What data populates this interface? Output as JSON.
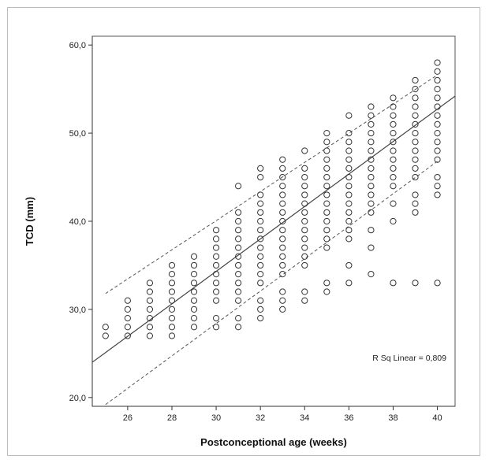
{
  "chart_data": {
    "type": "scatter",
    "xlabel": "Postconceptional age (weeks)",
    "ylabel": "TCD (mm)",
    "xlim": [
      24.4,
      40.8
    ],
    "ylim": [
      19.0,
      61.0
    ],
    "x_ticks": [
      26,
      28,
      30,
      32,
      34,
      36,
      38,
      40
    ],
    "y_ticks": [
      {
        "value": 20,
        "label": "20,0"
      },
      {
        "value": 30,
        "label": "30,0"
      },
      {
        "value": 40,
        "label": "40,0"
      },
      {
        "value": 50,
        "label": "50,0"
      },
      {
        "value": 60,
        "label": "60,0"
      }
    ],
    "annotation": "R Sq Linear = 0,809",
    "grid": false,
    "marker": "open-circle",
    "points": [
      {
        "x": 25,
        "y": [
          27,
          28
        ]
      },
      {
        "x": 26,
        "y": [
          27,
          28,
          29,
          30,
          31
        ]
      },
      {
        "x": 27,
        "y": [
          27,
          28,
          29,
          30,
          31,
          32,
          33
        ]
      },
      {
        "x": 28,
        "y": [
          27,
          28,
          29,
          30,
          31,
          32,
          33,
          34,
          35
        ]
      },
      {
        "x": 29,
        "y": [
          28,
          29,
          30,
          31,
          32,
          33,
          34,
          35,
          36
        ]
      },
      {
        "x": 30,
        "y": [
          28,
          29,
          31,
          32,
          33,
          34,
          35,
          36,
          37,
          38,
          39
        ]
      },
      {
        "x": 31,
        "y": [
          28,
          29,
          31,
          32,
          33,
          34,
          35,
          36,
          37,
          38,
          39,
          40,
          41,
          44
        ]
      },
      {
        "x": 32,
        "y": [
          29,
          30,
          31,
          33,
          34,
          35,
          36,
          37,
          38,
          39,
          40,
          41,
          42,
          43,
          45,
          46
        ]
      },
      {
        "x": 33,
        "y": [
          30,
          31,
          32,
          34,
          35,
          36,
          37,
          38,
          39,
          40,
          41,
          42,
          43,
          44,
          45,
          46,
          47
        ]
      },
      {
        "x": 34,
        "y": [
          31,
          32,
          35,
          36,
          37,
          38,
          39,
          40,
          41,
          42,
          43,
          44,
          45,
          46,
          48
        ]
      },
      {
        "x": 35,
        "y": [
          32,
          33,
          37,
          38,
          39,
          40,
          41,
          42,
          43,
          44,
          45,
          46,
          47,
          48,
          49,
          50
        ]
      },
      {
        "x": 36,
        "y": [
          33,
          35,
          38,
          39,
          40,
          41,
          42,
          43,
          44,
          45,
          46,
          47,
          48,
          49,
          50,
          52
        ]
      },
      {
        "x": 37,
        "y": [
          34,
          37,
          39,
          41,
          42,
          43,
          44,
          45,
          46,
          47,
          48,
          49,
          50,
          51,
          52,
          53
        ]
      },
      {
        "x": 38,
        "y": [
          33,
          40,
          42,
          44,
          45,
          46,
          47,
          48,
          49,
          50,
          51,
          52,
          53,
          54
        ]
      },
      {
        "x": 39,
        "y": [
          33,
          41,
          42,
          43,
          45,
          46,
          47,
          48,
          49,
          50,
          51,
          52,
          53,
          54,
          55,
          56
        ]
      },
      {
        "x": 40,
        "y": [
          33,
          43,
          44,
          45,
          47,
          48,
          49,
          50,
          51,
          52,
          53,
          54,
          55,
          56,
          57,
          58
        ]
      }
    ],
    "fit_line": {
      "type": "linear",
      "x": [
        24.4,
        40.8
      ],
      "y": [
        24.0,
        54.2
      ]
    },
    "prediction_interval": {
      "upper": {
        "x": [
          25,
          40
        ],
        "y": [
          31.8,
          56.6
        ]
      },
      "lower": {
        "x": [
          25,
          40
        ],
        "y": [
          19.2,
          46.8
        ]
      }
    }
  }
}
